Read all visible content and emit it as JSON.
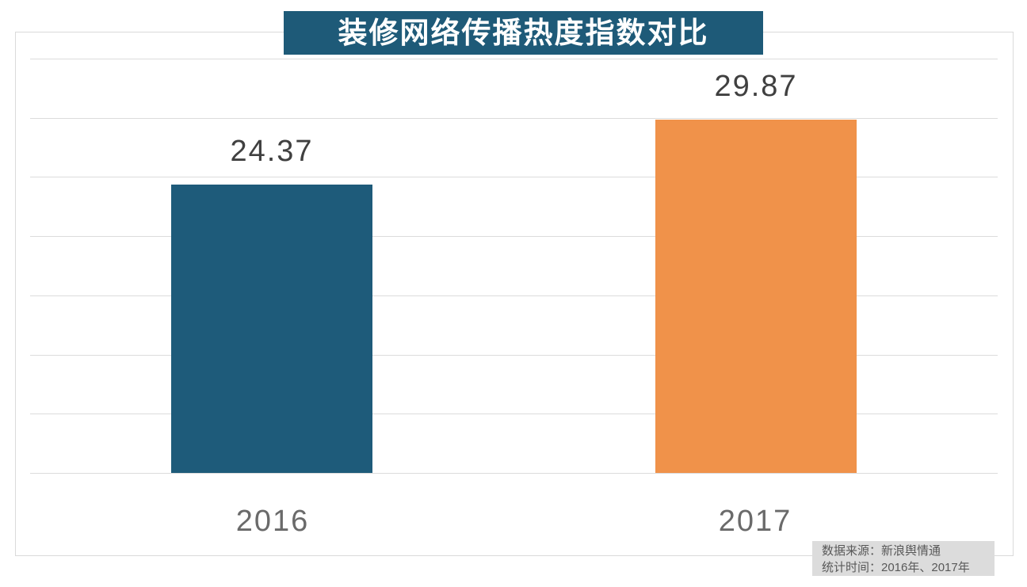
{
  "title": "装修网络传播热度指数对比",
  "source_note": {
    "line1": "数据来源：新浪舆情通",
    "line2": "统计时间：2016年、2017年"
  },
  "colors": {
    "title_bg": "#1E5A78",
    "title_text": "#FFFFFF",
    "gridline": "#DCDCDC",
    "frame_border": "#DADADA",
    "value_label_text": "#404040",
    "axis_label_text": "#6A6A6A",
    "note_bg": "#DCDCDC",
    "note_text": "#595959"
  },
  "chart_data": {
    "type": "bar",
    "title": "装修网络传播热度指数对比",
    "categories": [
      "2016",
      "2017"
    ],
    "values": [
      24.37,
      29.87
    ],
    "value_labels": [
      "24.37",
      "29.87"
    ],
    "bar_colors": [
      "#1E5B7A",
      "#F0924A"
    ],
    "ylim": [
      0,
      35
    ],
    "grid_interval": 5,
    "grid": true,
    "legend": "none",
    "xlabel": "",
    "ylabel": ""
  }
}
